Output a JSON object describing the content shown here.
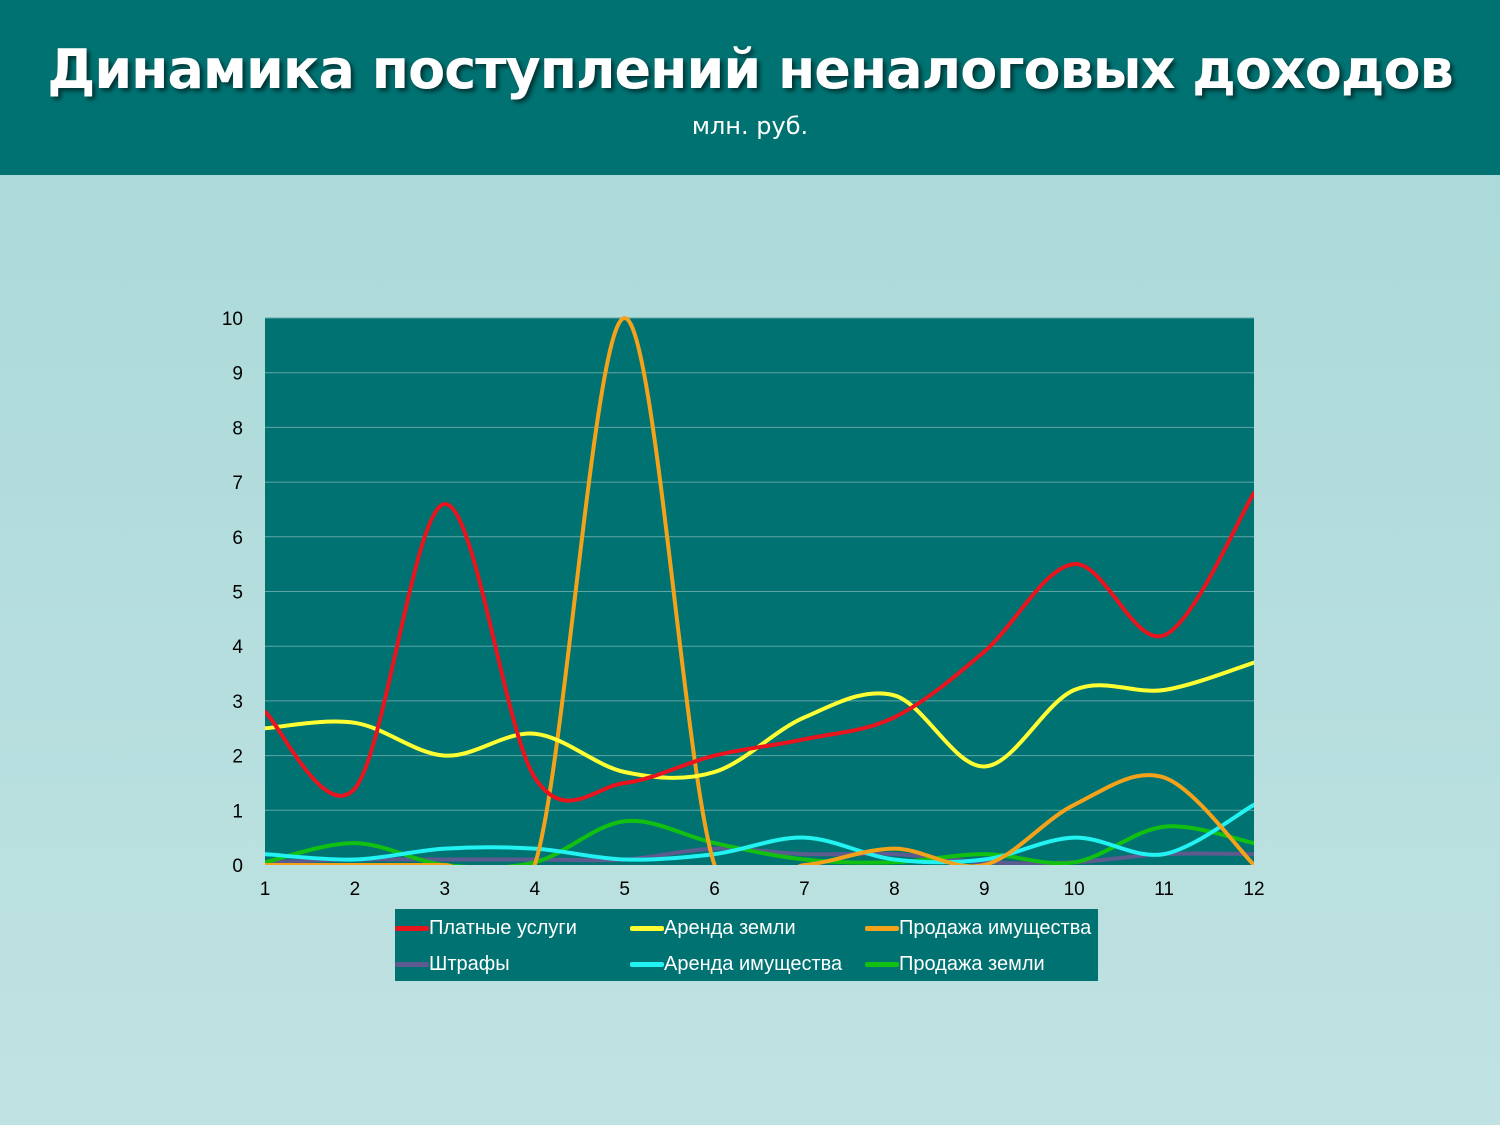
{
  "header": {
    "title": "Динамика поступлений неналоговых доходов",
    "subtitle": "млн. руб."
  },
  "chart_data": {
    "type": "line",
    "title": "Динамика поступлений неналоговых доходов",
    "subtitle": "млн. руб.",
    "x": [
      1,
      2,
      3,
      4,
      5,
      6,
      7,
      8,
      9,
      10,
      11,
      12
    ],
    "xticks": [
      "1",
      "2",
      "3",
      "4",
      "5",
      "6",
      "7",
      "8",
      "9",
      "10",
      "11",
      "12"
    ],
    "yticks": [
      "0",
      "1",
      "2",
      "3",
      "4",
      "5",
      "6",
      "7",
      "8",
      "9",
      "10"
    ],
    "ylim": [
      0,
      10
    ],
    "grid": true,
    "smooth": true,
    "legend_position": "bottom",
    "plot_background": "#007272",
    "series": [
      {
        "name": "Платные услуги",
        "color": "#e8141e",
        "values": [
          2.8,
          1.4,
          6.6,
          1.6,
          1.5,
          2.0,
          2.3,
          2.7,
          3.9,
          5.5,
          4.2,
          6.8
        ]
      },
      {
        "name": "Аренда земли",
        "color": "#ffff33",
        "values": [
          2.5,
          2.6,
          2.0,
          2.4,
          1.7,
          1.7,
          2.7,
          3.1,
          1.8,
          3.2,
          3.2,
          3.7
        ]
      },
      {
        "name": "Продажа имущества",
        "color": "#f5a21b",
        "values": [
          0,
          0,
          0,
          0,
          10.0,
          0,
          0,
          0.3,
          0,
          1.1,
          1.6,
          0
        ]
      },
      {
        "name": "Штрафы",
        "color": "#5c5a8e",
        "values": [
          0.05,
          0.1,
          0.1,
          0.1,
          0.1,
          0.3,
          0.2,
          0.2,
          0.05,
          0.05,
          0.2,
          0.2
        ]
      },
      {
        "name": "Аренда имущества",
        "color": "#22f2f2",
        "values": [
          0.2,
          0.1,
          0.3,
          0.3,
          0.1,
          0.2,
          0.5,
          0.1,
          0.1,
          0.5,
          0.2,
          1.1
        ]
      },
      {
        "name": "Продажа земли",
        "color": "#11c011",
        "values": [
          0.05,
          0.4,
          0.0,
          0.05,
          0.8,
          0.4,
          0.1,
          0.05,
          0.2,
          0.05,
          0.7,
          0.4
        ]
      }
    ]
  }
}
